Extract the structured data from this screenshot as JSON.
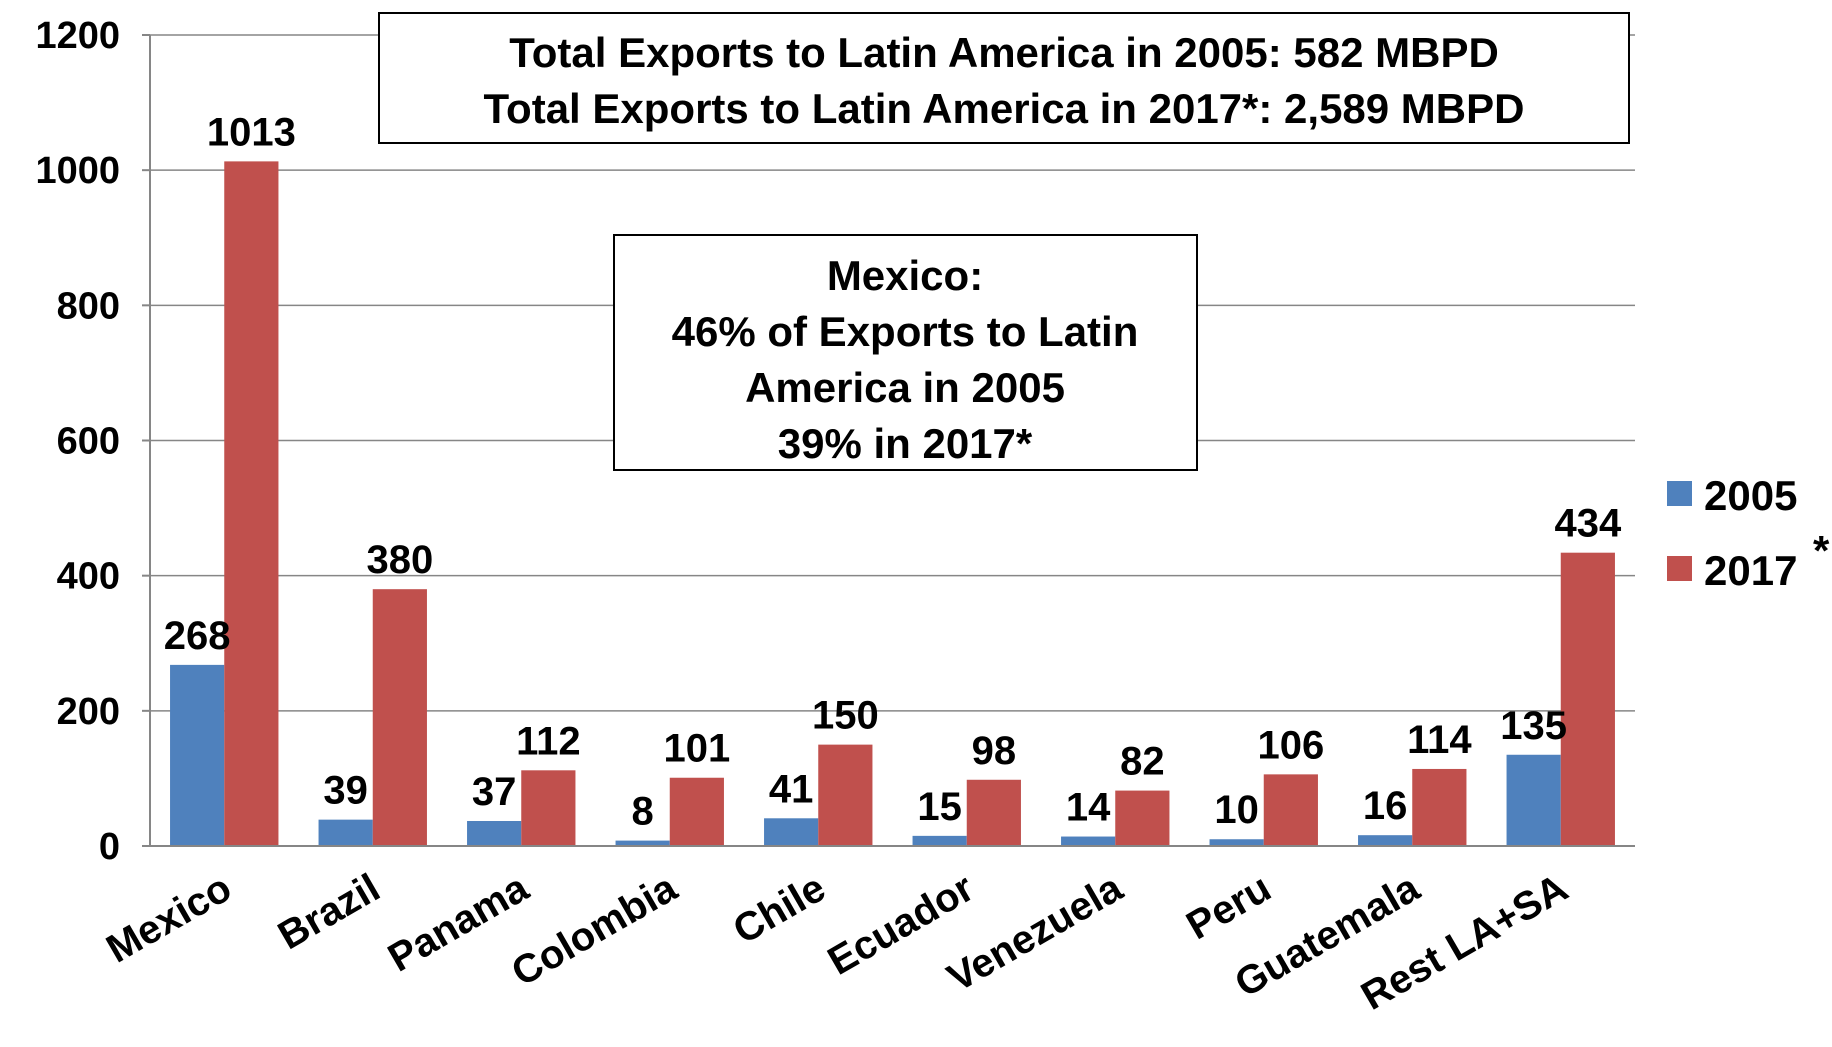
{
  "chart_data": {
    "type": "bar",
    "categories": [
      "Mexico",
      "Brazil",
      "Panama",
      "Colombia",
      "Chile",
      "Ecuador",
      "Venezuela",
      "Peru",
      "Guatemala",
      "Rest LA+SA"
    ],
    "series": [
      {
        "name": "2005",
        "color": "#4F81BD",
        "values": [
          268,
          39,
          37,
          8,
          41,
          15,
          14,
          10,
          16,
          135
        ]
      },
      {
        "name": "2017",
        "color": "#C0504D",
        "values": [
          1013,
          380,
          112,
          101,
          150,
          98,
          82,
          106,
          114,
          434
        ]
      }
    ],
    "yticks": [
      "0",
      "200",
      "400",
      "600",
      "800",
      "1000",
      "1200"
    ],
    "ylim": [
      0,
      1200
    ],
    "grid": true,
    "legend_position": "right",
    "legend_asterisk": "*",
    "annotations": {
      "totals": [
        "Total Exports to Latin America in 2005: 582 MBPD",
        "Total Exports to Latin America in 2017*: 2,589 MBPD"
      ],
      "mexico": [
        "Mexico:",
        "46% of Exports to Latin",
        "America in 2005",
        "39% in 2017*"
      ]
    }
  }
}
